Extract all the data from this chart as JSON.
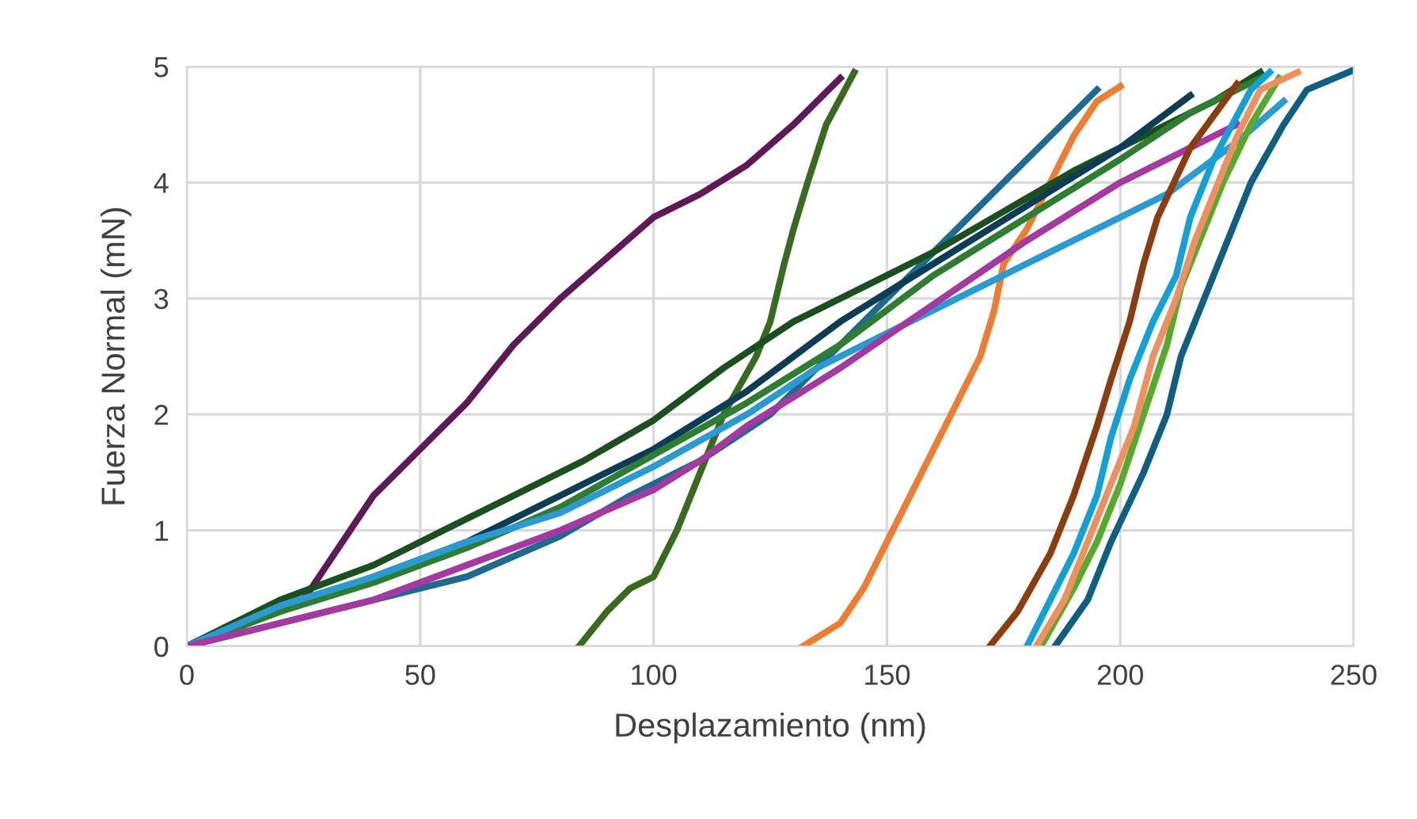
{
  "chart_data": {
    "type": "line",
    "xlabel": "Desplazamiento (nm)",
    "ylabel": "Fuerza Normal (mN)",
    "xlim": [
      0,
      250
    ],
    "ylim": [
      0,
      5
    ],
    "xticks": [
      0,
      50,
      100,
      150,
      200,
      250
    ],
    "yticks": [
      0,
      1,
      2,
      3,
      4,
      5
    ],
    "grid": true,
    "marker": "none",
    "line_style": "solid",
    "series": [
      {
        "color": "#5e1a56",
        "x": [
          0,
          10,
          25,
          30,
          40,
          50,
          60,
          70,
          80,
          90,
          100,
          110,
          120,
          130,
          140
        ],
        "values": [
          0,
          0.2,
          0.4,
          0.7,
          1.3,
          1.7,
          2.1,
          2.6,
          3.0,
          3.35,
          3.7,
          3.9,
          4.15,
          4.5,
          4.9
        ]
      },
      {
        "color": "#386b1f",
        "x": [
          84,
          90,
          95,
          100,
          105,
          110,
          115,
          122,
          125,
          128,
          130,
          133,
          137,
          143
        ],
        "values": [
          0,
          0.3,
          0.5,
          0.6,
          1.0,
          1.5,
          2.0,
          2.5,
          2.8,
          3.3,
          3.6,
          4.0,
          4.5,
          4.95
        ]
      },
      {
        "color": "#1f6a8f",
        "x": [
          0,
          20,
          40,
          60,
          80,
          95,
          110,
          125,
          140,
          155,
          165,
          175,
          185,
          195
        ],
        "values": [
          0,
          0.2,
          0.4,
          0.6,
          0.95,
          1.3,
          1.6,
          2.0,
          2.6,
          3.2,
          3.6,
          4.0,
          4.4,
          4.8
        ]
      },
      {
        "color": "#ed7d31",
        "x": [
          132,
          140,
          145,
          150,
          155,
          160,
          165,
          170,
          173,
          175,
          180,
          185,
          190,
          195,
          200
        ],
        "values": [
          0,
          0.2,
          0.5,
          0.9,
          1.3,
          1.7,
          2.1,
          2.5,
          2.9,
          3.3,
          3.6,
          4.0,
          4.4,
          4.7,
          4.83
        ]
      },
      {
        "color": "#1b4f1f",
        "x": [
          0,
          20,
          40,
          55,
          70,
          85,
          100,
          115,
          130,
          145,
          160,
          175,
          190,
          205,
          220,
          230
        ],
        "values": [
          0,
          0.4,
          0.7,
          1.0,
          1.3,
          1.6,
          1.95,
          2.4,
          2.8,
          3.1,
          3.4,
          3.75,
          4.1,
          4.4,
          4.7,
          4.95
        ]
      },
      {
        "color": "#0d3d56",
        "x": [
          0,
          20,
          40,
          60,
          80,
          100,
          120,
          140,
          160,
          180,
          200,
          215
        ],
        "values": [
          0,
          0.3,
          0.6,
          0.9,
          1.3,
          1.7,
          2.2,
          2.8,
          3.3,
          3.8,
          4.3,
          4.75
        ]
      },
      {
        "color": "#2e7d32",
        "x": [
          0,
          20,
          40,
          60,
          80,
          100,
          120,
          140,
          160,
          180,
          200,
          215,
          230
        ],
        "values": [
          0,
          0.3,
          0.55,
          0.85,
          1.2,
          1.65,
          2.1,
          2.6,
          3.2,
          3.7,
          4.2,
          4.6,
          4.9
        ]
      },
      {
        "color": "#2a9ad0",
        "x": [
          0,
          20,
          40,
          60,
          80,
          100,
          120,
          135,
          150,
          170,
          190,
          210,
          225,
          235
        ],
        "values": [
          0,
          0.35,
          0.6,
          0.9,
          1.15,
          1.55,
          2.0,
          2.4,
          2.7,
          3.1,
          3.5,
          3.9,
          4.35,
          4.7
        ]
      },
      {
        "color": "#a23aa0",
        "x": [
          0,
          20,
          40,
          60,
          80,
          100,
          110,
          120,
          140,
          160,
          180,
          200,
          215,
          225
        ],
        "values": [
          0,
          0.2,
          0.4,
          0.7,
          1.0,
          1.35,
          1.6,
          1.9,
          2.4,
          2.95,
          3.5,
          4.0,
          4.3,
          4.5
        ]
      },
      {
        "color": "#8b3d0f",
        "x": [
          172,
          178,
          185,
          190,
          195,
          198,
          202,
          205,
          208,
          215,
          225
        ],
        "values": [
          0,
          0.3,
          0.8,
          1.3,
          1.9,
          2.3,
          2.8,
          3.3,
          3.7,
          4.3,
          4.85
        ]
      },
      {
        "color": "#12a0d8",
        "x": [
          180,
          185,
          190,
          195,
          198,
          202,
          207,
          212,
          215,
          220,
          228,
          232
        ],
        "values": [
          0,
          0.4,
          0.8,
          1.3,
          1.8,
          2.3,
          2.8,
          3.2,
          3.7,
          4.2,
          4.8,
          4.95
        ]
      },
      {
        "color": "#56ab2f",
        "x": [
          183,
          190,
          195,
          200,
          205,
          210,
          213,
          218,
          222,
          228,
          234
        ],
        "values": [
          0,
          0.5,
          0.9,
          1.4,
          2.0,
          2.6,
          3.1,
          3.6,
          4.0,
          4.5,
          4.9
        ]
      },
      {
        "color": "#f09060",
        "x": [
          182,
          188,
          193,
          198,
          203,
          207,
          212,
          216,
          220,
          225,
          230,
          238
        ],
        "values": [
          0,
          0.4,
          0.9,
          1.4,
          1.9,
          2.5,
          3.0,
          3.5,
          3.9,
          4.4,
          4.8,
          4.95
        ]
      },
      {
        "color": "#0f5f82",
        "x": [
          186,
          193,
          198,
          205,
          210,
          213,
          218,
          223,
          228,
          235,
          240,
          250
        ],
        "values": [
          0,
          0.4,
          0.9,
          1.5,
          2.0,
          2.5,
          3.0,
          3.5,
          4.0,
          4.5,
          4.8,
          4.97
        ]
      }
    ]
  }
}
